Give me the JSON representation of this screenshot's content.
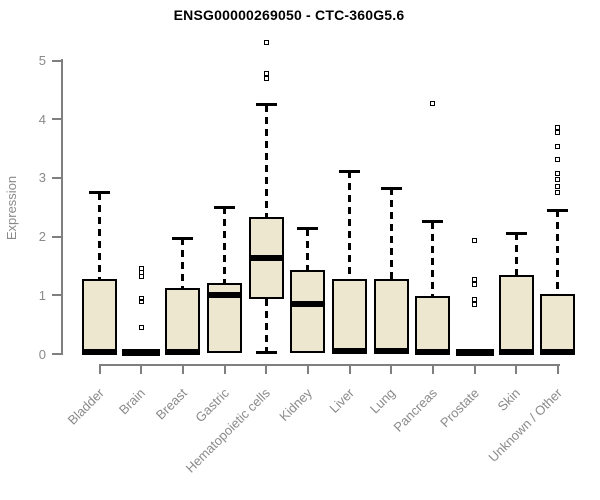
{
  "chart_data": {
    "type": "box",
    "title": "ENSG00000269050 - CTC-360G5.6",
    "ylabel": "Expression",
    "xlabel": "",
    "ylim": [
      0,
      5
    ],
    "yticks": [
      0,
      1,
      2,
      3,
      4,
      5
    ],
    "grid": false,
    "legend": "none",
    "categories": [
      "Bladder",
      "Brain",
      "Breast",
      "Gastric",
      "Hematopoietic cells",
      "Kidney",
      "Liver",
      "Lung",
      "Pancreas",
      "Prostate",
      "Skin",
      "Unknown / Other"
    ],
    "boxes": [
      {
        "category": "Bladder",
        "low": 0,
        "q1": 0,
        "median": 0.04,
        "q3": 1.27,
        "high": 2.75,
        "outliers": []
      },
      {
        "category": "Brain",
        "low": 0,
        "q1": 0,
        "median": 0.02,
        "q3": 0.02,
        "high": 0.02,
        "outliers": [
          1.46,
          1.38,
          1.32,
          0.95,
          0.9,
          0.45
        ]
      },
      {
        "category": "Breast",
        "low": 0,
        "q1": 0,
        "median": 0.04,
        "q3": 1.12,
        "high": 1.97,
        "outliers": []
      },
      {
        "category": "Gastric",
        "low": 0.02,
        "q1": 0.02,
        "median": 1.0,
        "q3": 1.21,
        "high": 2.5,
        "outliers": []
      },
      {
        "category": "Hematopoietic cells",
        "low": 0.02,
        "q1": 0.94,
        "median": 1.63,
        "q3": 2.33,
        "high": 4.25,
        "outliers": [
          5.3,
          4.78,
          4.7
        ]
      },
      {
        "category": "Kidney",
        "low": 0.01,
        "q1": 0.01,
        "median": 0.85,
        "q3": 1.43,
        "high": 2.13,
        "outliers": []
      },
      {
        "category": "Liver",
        "low": 0,
        "q1": 0,
        "median": 0.05,
        "q3": 1.28,
        "high": 3.11,
        "outliers": []
      },
      {
        "category": "Lung",
        "low": 0,
        "q1": 0,
        "median": 0.05,
        "q3": 1.28,
        "high": 2.82,
        "outliers": []
      },
      {
        "category": "Pancreas",
        "low": 0,
        "q1": 0,
        "median": 0.03,
        "q3": 0.98,
        "high": 2.25,
        "outliers": [
          4.27
        ]
      },
      {
        "category": "Prostate",
        "low": 0,
        "q1": 0,
        "median": 0.02,
        "q3": 0.02,
        "high": 0.02,
        "outliers": [
          1.94,
          1.27,
          1.18,
          0.93,
          0.85
        ]
      },
      {
        "category": "Skin",
        "low": 0,
        "q1": 0,
        "median": 0.04,
        "q3": 1.35,
        "high": 2.06,
        "outliers": []
      },
      {
        "category": "Unknown / Other",
        "low": 0,
        "q1": 0,
        "median": 0.03,
        "q3": 1.03,
        "high": 2.45,
        "outliers": [
          3.86,
          3.77,
          3.53,
          3.32,
          3.08,
          2.97,
          2.86,
          2.75
        ]
      }
    ],
    "style": {
      "box_fill": "#EDE7CF",
      "box_border": "#000000",
      "median_color": "#000000",
      "axis_color": "#7F7F7F",
      "label_color": "#8A8A8A",
      "title_color": "#000000",
      "background": "#FFFFFF"
    }
  }
}
